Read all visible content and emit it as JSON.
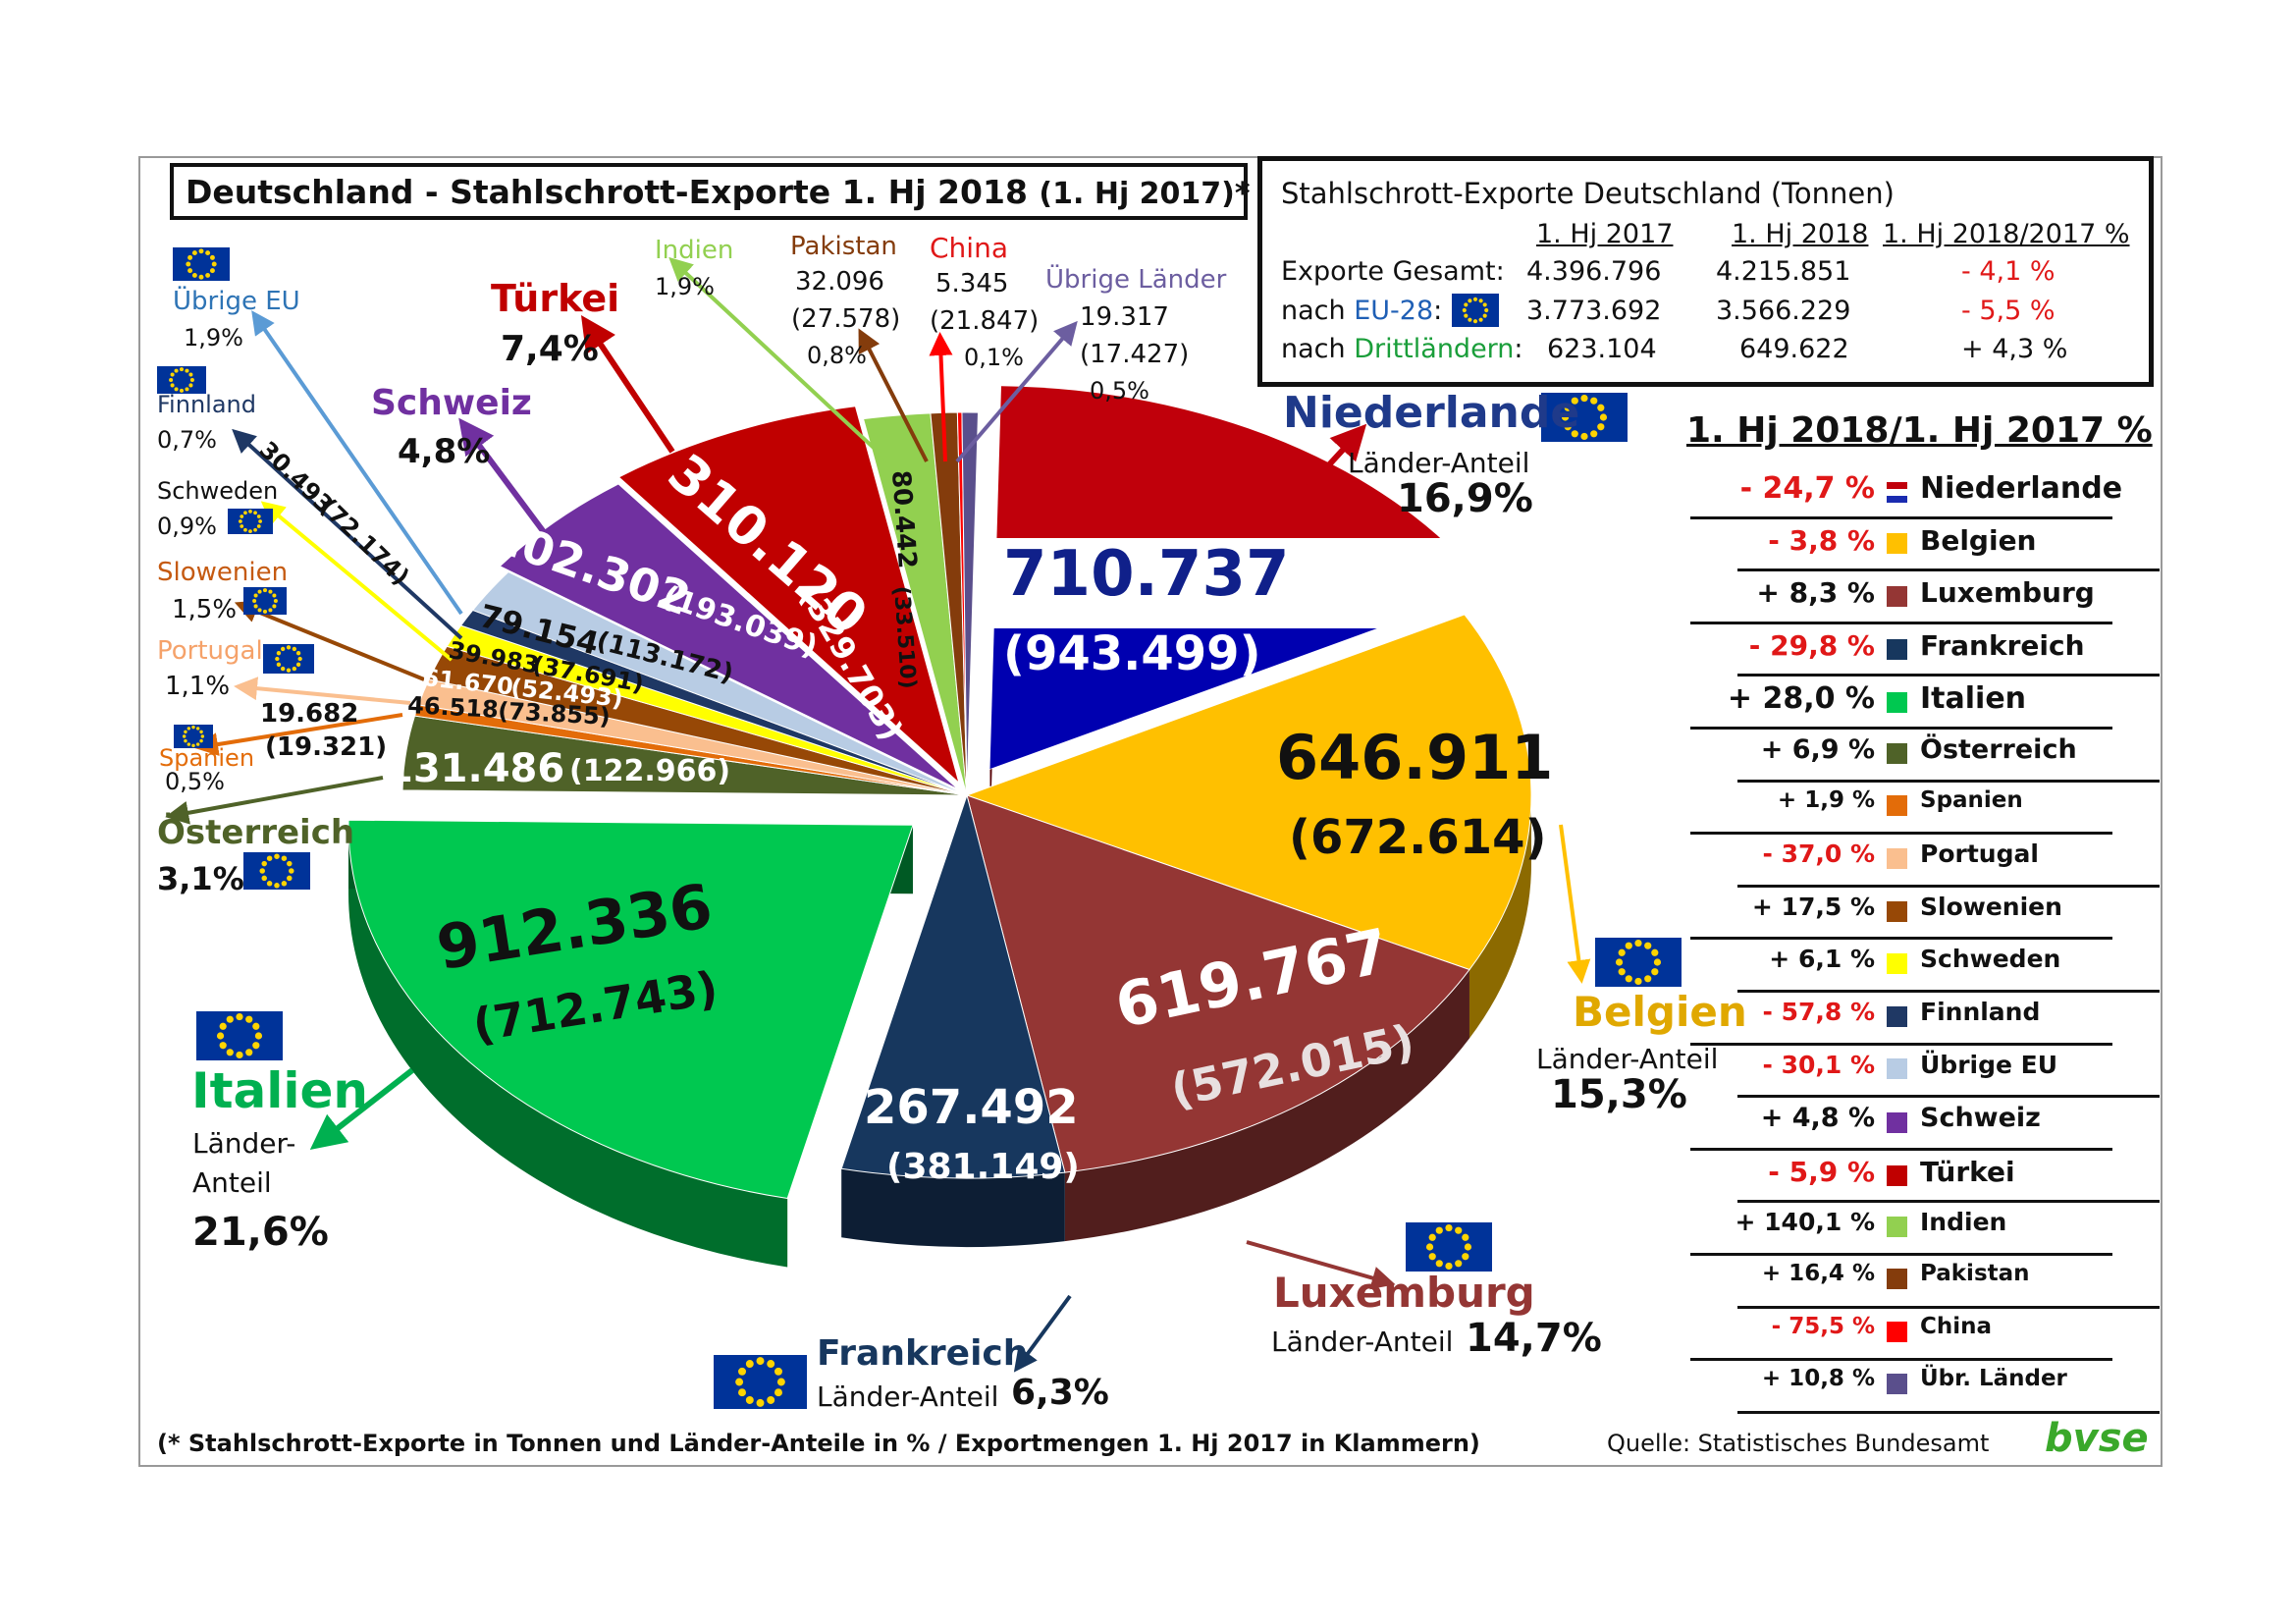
{
  "title": {
    "main": "Deutschland - Stahlschrott-Exporte  1. Hj 2018",
    "sub": "(1. Hj 2017)*"
  },
  "stats_table": {
    "header": "Stahlschrott-Exporte Deutschland (Tonnen)",
    "columns": [
      "1. Hj 2017",
      "1. Hj 2018",
      "1. Hj 2018/2017 %"
    ],
    "rows": [
      {
        "label": "Exporte Gesamt:",
        "label_prefix": "",
        "label_highlight": "",
        "v2017": "4.396.796",
        "v2018": "4.215.851",
        "change": "- 4,1 %"
      },
      {
        "label": "",
        "label_prefix": "nach ",
        "label_highlight": "EU-28",
        "label_suffix": ":",
        "v2017": "3.773.692",
        "v2018": "3.566.229",
        "change": "- 5,5 %"
      },
      {
        "label": "",
        "label_prefix": "nach ",
        "label_highlight": "Drittländern",
        "label_suffix": ":",
        "v2017": "623.104",
        "v2018": "649.622",
        "change": "+ 4,3 %"
      }
    ]
  },
  "chart_data": {
    "type": "pie",
    "title": "Deutschland - Stahlschrott-Exporte  1. Hj 2018 (1. Hj 2017)*",
    "slices": [
      {
        "name": "Niederlande",
        "value_2018": 710737,
        "value_2017": 943499,
        "value_label": "710.737",
        "prev_label": "(943.499)",
        "share": "16,9%",
        "color": "#c0000b"
      },
      {
        "name": "Belgien",
        "value_2018": 646911,
        "value_2017": 672614,
        "value_label": "646.911",
        "prev_label": "(672.614)",
        "share": "15,3%",
        "color": "#ffc000"
      },
      {
        "name": "Luxemburg",
        "value_2018": 619767,
        "value_2017": 572015,
        "value_label": "619.767",
        "prev_label": "(572.015)",
        "share": "14,7%",
        "color": "#943634"
      },
      {
        "name": "Frankreich",
        "value_2018": 267492,
        "value_2017": 381149,
        "value_label": "267.492",
        "prev_label": "(381.149)",
        "share": "6,3%",
        "color": "#17375e"
      },
      {
        "name": "Italien",
        "value_2018": 912336,
        "value_2017": 712743,
        "value_label": "912.336",
        "prev_label": "(712.743)",
        "share": "21,6%",
        "color": "#00c850"
      },
      {
        "name": "Österreich",
        "value_2018": 131486,
        "value_2017": 122966,
        "value_label": "131.486",
        "prev_label": "(122.966)",
        "share": "3,1%",
        "color": "#4f6228"
      },
      {
        "name": "Spanien",
        "value_2018": 19682,
        "value_2017": 19321,
        "value_label": "19.682",
        "prev_label": "(19.321)",
        "share": "0,5%",
        "color": "#e36c09"
      },
      {
        "name": "Portugal",
        "value_2018": 46518,
        "value_2017": 73855,
        "value_label": "46.518",
        "prev_label": "(73.855)",
        "share": "1,1%",
        "color": "#fabf8f"
      },
      {
        "name": "Slowenien",
        "value_2018": 61670,
        "value_2017": 52493,
        "value_label": "61.670",
        "prev_label": "(52.493)",
        "share": "1,5%",
        "color": "#974806"
      },
      {
        "name": "Schweden",
        "value_2018": 39983,
        "value_2017": 37691,
        "value_label": "39.983",
        "prev_label": "(37.691)",
        "share": "0,9%",
        "color": "#ffff00"
      },
      {
        "name": "Finnland",
        "value_2018": 30493,
        "value_2017": 72174,
        "value_label": "30.493",
        "prev_label": "(72.174)",
        "share": "0,7%",
        "color": "#1f3864"
      },
      {
        "name": "Übrige EU",
        "value_2018": 79154,
        "value_2017": 113172,
        "value_label": "79.154",
        "prev_label": "(113.172)",
        "share": "1,9%",
        "color": "#b8cce4"
      },
      {
        "name": "Schweiz",
        "value_2018": 202302,
        "value_2017": 193039,
        "value_label": "202.302",
        "prev_label": "(193.039)",
        "share": "4,8%",
        "color": "#7030a0"
      },
      {
        "name": "Türkei",
        "value_2018": 310120,
        "value_2017": 329703,
        "value_label": "310.120",
        "prev_label": "(329.703)",
        "share": "7,4%",
        "color": "#c00000"
      },
      {
        "name": "Indien",
        "value_2018": 80442,
        "value_2017": 33510,
        "value_label": "80.442",
        "prev_label": "(33.510)",
        "share": "1,9%",
        "color": "#92d050"
      },
      {
        "name": "Pakistan",
        "value_2018": 32096,
        "value_2017": 27578,
        "value_label": "32.096",
        "prev_label": "(27.578)",
        "share": "0,8%",
        "color": "#843c0c"
      },
      {
        "name": "China",
        "value_2018": 5345,
        "value_2017": 21847,
        "value_label": "5.345",
        "prev_label": "(21.847)",
        "share": "0,1%",
        "color": "#ff0000"
      },
      {
        "name": "Übrige Länder",
        "value_2018": 19317,
        "value_2017": 17427,
        "value_label": "19.317",
        "prev_label": "(17.427)",
        "share": "0,5%",
        "color": "#5a4f8c"
      }
    ]
  },
  "labels": {
    "laender_anteil": "Länder-Anteil",
    "laender_anteil_split_1": "Länder-",
    "laender_anteil_split_2": "Anteil"
  },
  "changes": {
    "title": "1. Hj 2018/1. Hj 2017  %",
    "rows": [
      {
        "value": "- 24,7 %",
        "country": "Niederlande",
        "color": "#c0000b",
        "negative": true,
        "size": 30
      },
      {
        "value": "- 3,8 %",
        "country": "Belgien",
        "color": "#ffc000",
        "negative": true,
        "size": 28
      },
      {
        "value": "+ 8,3 %",
        "country": "Luxemburg",
        "color": "#943634",
        "negative": false,
        "size": 28
      },
      {
        "value": "- 29,8 %",
        "country": "Frankreich",
        "color": "#17375e",
        "negative": true,
        "size": 28
      },
      {
        "value": "+ 28,0 %",
        "country": "Italien",
        "color": "#00c850",
        "negative": false,
        "size": 30
      },
      {
        "value": "+ 6,9 %",
        "country": "Österreich",
        "color": "#4f6228",
        "negative": false,
        "size": 27
      },
      {
        "value": "+ 1,9 %",
        "country": "Spanien",
        "color": "#e36c09",
        "negative": false,
        "size": 23
      },
      {
        "value": "- 37,0 %",
        "country": "Portugal",
        "color": "#fabf8f",
        "negative": true,
        "size": 25
      },
      {
        "value": "+ 17,5 %",
        "country": "Slowenien",
        "color": "#974806",
        "negative": false,
        "size": 25
      },
      {
        "value": "+ 6,1 %",
        "country": "Schweden",
        "color": "#ffff00",
        "negative": false,
        "size": 25
      },
      {
        "value": "- 57,8 %",
        "country": "Finnland",
        "color": "#1f3864",
        "negative": true,
        "size": 25
      },
      {
        "value": "- 30,1 %",
        "country": "Übrige EU",
        "color": "#b8cce4",
        "negative": true,
        "size": 25
      },
      {
        "value": "+ 4,8 %",
        "country": "Schweiz",
        "color": "#7030a0",
        "negative": false,
        "size": 27
      },
      {
        "value": "- 5,9 %",
        "country": "Türkei",
        "color": "#c00000",
        "negative": true,
        "size": 28
      },
      {
        "value": "+ 140,1 %",
        "country": "Indien",
        "color": "#92d050",
        "negative": false,
        "size": 25
      },
      {
        "value": "+ 16,4 %",
        "country": "Pakistan",
        "color": "#843c0c",
        "negative": false,
        "size": 23
      },
      {
        "value": "- 75,5 %",
        "country": "China",
        "color": "#ff0000",
        "negative": true,
        "size": 23
      },
      {
        "value": "+ 10,8 %",
        "country": "Übr. Länder",
        "color": "#5a4f8c",
        "negative": false,
        "size": 23
      }
    ]
  },
  "footnote": "(* Stahlschrott-Exporte in Tonnen und Länder-Anteile in % / Exportmengen 1. Hj 2017 in Klammern)",
  "source": "Quelle: Statistisches Bundesamt",
  "logo": "bvse",
  "icons": {
    "eu_flag": "eu-flag-icon",
    "nl_flag": "netherlands-flag-icon"
  }
}
